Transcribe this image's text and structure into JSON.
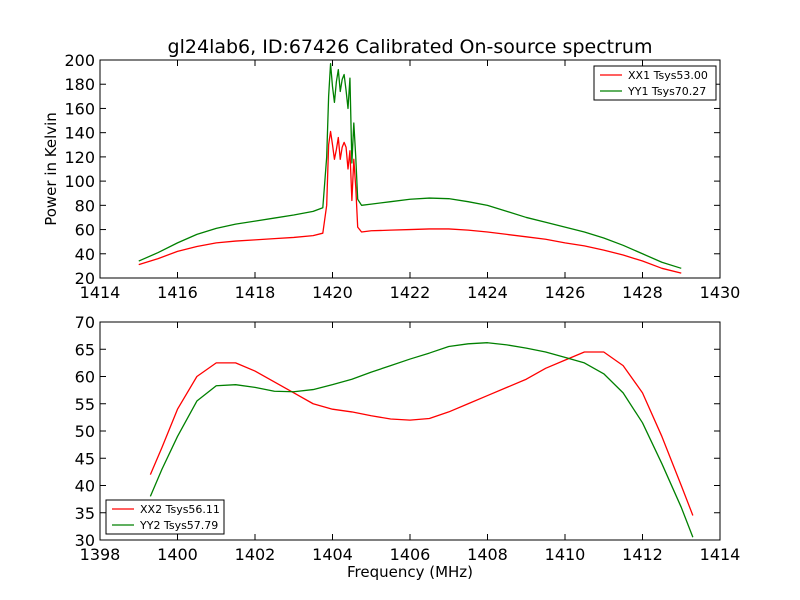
{
  "chart_data": [
    {
      "type": "line",
      "title": "gl24lab6, ID:67426 Calibrated On-source spectrum",
      "xlabel": "",
      "ylabel": "Power in Kelvin",
      "xlim": [
        1414,
        1430
      ],
      "ylim": [
        20,
        200
      ],
      "xticks": [
        1414,
        1416,
        1418,
        1420,
        1422,
        1424,
        1426,
        1428,
        1430
      ],
      "yticks": [
        20,
        40,
        60,
        80,
        100,
        120,
        140,
        160,
        180,
        200
      ],
      "legend_position": "top-right",
      "series": [
        {
          "name": "XX1 Tsys53.00",
          "color": "#ff0000",
          "points": [
            [
              1415.0,
              31
            ],
            [
              1415.5,
              36
            ],
            [
              1416.0,
              42
            ],
            [
              1416.5,
              46
            ],
            [
              1417.0,
              49
            ],
            [
              1417.5,
              50.5
            ],
            [
              1418.0,
              51.5
            ],
            [
              1418.5,
              52.5
            ],
            [
              1419.0,
              53.5
            ],
            [
              1419.5,
              55
            ],
            [
              1419.75,
              57
            ],
            [
              1419.85,
              80
            ],
            [
              1419.9,
              130
            ],
            [
              1419.95,
              141
            ],
            [
              1420.0,
              130
            ],
            [
              1420.05,
              118
            ],
            [
              1420.1,
              126
            ],
            [
              1420.15,
              136
            ],
            [
              1420.2,
              118
            ],
            [
              1420.25,
              128
            ],
            [
              1420.3,
              132
            ],
            [
              1420.35,
              128
            ],
            [
              1420.4,
              110
            ],
            [
              1420.45,
              125
            ],
            [
              1420.5,
              84
            ],
            [
              1420.55,
              118
            ],
            [
              1420.6,
              95
            ],
            [
              1420.65,
              62
            ],
            [
              1420.75,
              58
            ],
            [
              1421.0,
              59
            ],
            [
              1421.5,
              59.5
            ],
            [
              1422.0,
              60
            ],
            [
              1422.5,
              60.5
            ],
            [
              1423.0,
              60.5
            ],
            [
              1423.5,
              59.5
            ],
            [
              1424.0,
              58
            ],
            [
              1424.5,
              56
            ],
            [
              1425.0,
              54
            ],
            [
              1425.5,
              52
            ],
            [
              1426.0,
              49
            ],
            [
              1426.5,
              46.5
            ],
            [
              1427.0,
              43
            ],
            [
              1427.5,
              39
            ],
            [
              1428.0,
              34
            ],
            [
              1428.5,
              28
            ],
            [
              1429.0,
              24
            ]
          ]
        },
        {
          "name": "YY1 Tsys70.27",
          "color": "#008000",
          "points": [
            [
              1415.0,
              34
            ],
            [
              1415.5,
              41
            ],
            [
              1416.0,
              49
            ],
            [
              1416.5,
              56
            ],
            [
              1417.0,
              61
            ],
            [
              1417.5,
              64.5
            ],
            [
              1418.0,
              67
            ],
            [
              1418.5,
              69.5
            ],
            [
              1419.0,
              72
            ],
            [
              1419.5,
              75
            ],
            [
              1419.75,
              78
            ],
            [
              1419.85,
              120
            ],
            [
              1419.9,
              170
            ],
            [
              1419.95,
              197
            ],
            [
              1420.0,
              178
            ],
            [
              1420.05,
              165
            ],
            [
              1420.1,
              182
            ],
            [
              1420.15,
              192
            ],
            [
              1420.2,
              174
            ],
            [
              1420.25,
              184
            ],
            [
              1420.3,
              188
            ],
            [
              1420.35,
              175
            ],
            [
              1420.4,
              160
            ],
            [
              1420.45,
              185
            ],
            [
              1420.5,
              115
            ],
            [
              1420.55,
              148
            ],
            [
              1420.6,
              120
            ],
            [
              1420.65,
              85
            ],
            [
              1420.75,
              80
            ],
            [
              1421.0,
              81
            ],
            [
              1421.5,
              83
            ],
            [
              1422.0,
              85
            ],
            [
              1422.5,
              86
            ],
            [
              1423.0,
              85.5
            ],
            [
              1423.5,
              83
            ],
            [
              1424.0,
              80
            ],
            [
              1424.5,
              75
            ],
            [
              1425.0,
              70
            ],
            [
              1425.5,
              66
            ],
            [
              1426.0,
              62
            ],
            [
              1426.5,
              58
            ],
            [
              1427.0,
              53
            ],
            [
              1427.5,
              47
            ],
            [
              1428.0,
              40
            ],
            [
              1428.5,
              33
            ],
            [
              1429.0,
              28
            ]
          ]
        }
      ]
    },
    {
      "type": "line",
      "title": "",
      "xlabel": "Frequency (MHz)",
      "ylabel": "",
      "xlim": [
        1398,
        1414
      ],
      "ylim": [
        30,
        70
      ],
      "xticks": [
        1398,
        1400,
        1402,
        1404,
        1406,
        1408,
        1410,
        1412,
        1414
      ],
      "yticks": [
        30,
        35,
        40,
        45,
        50,
        55,
        60,
        65,
        70
      ],
      "legend_position": "bottom-left",
      "series": [
        {
          "name": "XX2 Tsys56.11",
          "color": "#ff0000",
          "points": [
            [
              1399.3,
              42
            ],
            [
              1399.6,
              47
            ],
            [
              1400.0,
              54
            ],
            [
              1400.5,
              60
            ],
            [
              1401.0,
              62.5
            ],
            [
              1401.5,
              62.5
            ],
            [
              1402.0,
              61
            ],
            [
              1402.5,
              59
            ],
            [
              1403.0,
              57
            ],
            [
              1403.5,
              55
            ],
            [
              1404.0,
              54
            ],
            [
              1404.5,
              53.5
            ],
            [
              1405.0,
              52.8
            ],
            [
              1405.5,
              52.2
            ],
            [
              1406.0,
              52
            ],
            [
              1406.5,
              52.3
            ],
            [
              1407.0,
              53.5
            ],
            [
              1407.5,
              55
            ],
            [
              1408.0,
              56.5
            ],
            [
              1408.5,
              58
            ],
            [
              1409.0,
              59.5
            ],
            [
              1409.5,
              61.5
            ],
            [
              1410.0,
              63
            ],
            [
              1410.5,
              64.5
            ],
            [
              1411.0,
              64.5
            ],
            [
              1411.5,
              62
            ],
            [
              1412.0,
              57
            ],
            [
              1412.5,
              49
            ],
            [
              1413.0,
              40
            ],
            [
              1413.3,
              34.5
            ]
          ]
        },
        {
          "name": "YY2 Tsys57.79",
          "color": "#008000",
          "points": [
            [
              1399.3,
              38
            ],
            [
              1399.6,
              43
            ],
            [
              1400.0,
              49
            ],
            [
              1400.5,
              55.5
            ],
            [
              1401.0,
              58.3
            ],
            [
              1401.5,
              58.5
            ],
            [
              1402.0,
              58
            ],
            [
              1402.5,
              57.3
            ],
            [
              1403.0,
              57.2
            ],
            [
              1403.5,
              57.6
            ],
            [
              1404.0,
              58.5
            ],
            [
              1404.5,
              59.5
            ],
            [
              1405.0,
              60.8
            ],
            [
              1405.5,
              62
            ],
            [
              1406.0,
              63.2
            ],
            [
              1406.5,
              64.3
            ],
            [
              1407.0,
              65.5
            ],
            [
              1407.5,
              66
            ],
            [
              1408.0,
              66.2
            ],
            [
              1408.5,
              65.8
            ],
            [
              1409.0,
              65.2
            ],
            [
              1409.5,
              64.5
            ],
            [
              1410.0,
              63.5
            ],
            [
              1410.5,
              62.5
            ],
            [
              1411.0,
              60.5
            ],
            [
              1411.5,
              57
            ],
            [
              1412.0,
              51.5
            ],
            [
              1412.5,
              44
            ],
            [
              1413.0,
              36
            ],
            [
              1413.3,
              30.5
            ]
          ]
        }
      ]
    }
  ]
}
